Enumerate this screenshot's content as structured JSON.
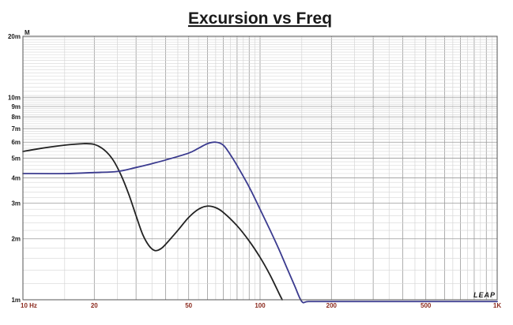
{
  "chart_data": {
    "type": "line",
    "title": "Excursion vs Freq",
    "ylabel": "M",
    "xscale": "log",
    "yscale": "log",
    "xlim": [
      10,
      1000
    ],
    "ylim": [
      0.001,
      0.02
    ],
    "grid": true,
    "x_tick_labels": [
      {
        "value": 10,
        "label": "10  Hz"
      },
      {
        "value": 20,
        "label": "20"
      },
      {
        "value": 50,
        "label": "50"
      },
      {
        "value": 100,
        "label": "100"
      },
      {
        "value": 200,
        "label": "200"
      },
      {
        "value": 500,
        "label": "500"
      },
      {
        "value": 1000,
        "label": "1K"
      }
    ],
    "y_tick_labels": [
      {
        "value": 0.02,
        "label": "20m"
      },
      {
        "value": 0.01,
        "label": "10m"
      },
      {
        "value": 0.009,
        "label": "9m"
      },
      {
        "value": 0.008,
        "label": "8m"
      },
      {
        "value": 0.007,
        "label": "7m"
      },
      {
        "value": 0.006,
        "label": "6m"
      },
      {
        "value": 0.005,
        "label": "5m"
      },
      {
        "value": 0.004,
        "label": "4m"
      },
      {
        "value": 0.003,
        "label": "3m"
      },
      {
        "value": 0.002,
        "label": "2m"
      },
      {
        "value": 0.001,
        "label": "1m"
      }
    ],
    "series": [
      {
        "color": "#222222",
        "points": [
          [
            10,
            0.0054
          ],
          [
            12,
            0.0056
          ],
          [
            15,
            0.0058
          ],
          [
            18,
            0.0059
          ],
          [
            20,
            0.00585
          ],
          [
            22,
            0.0055
          ],
          [
            24,
            0.0049
          ],
          [
            26,
            0.0041
          ],
          [
            28,
            0.0033
          ],
          [
            30,
            0.0026
          ],
          [
            32,
            0.0021
          ],
          [
            34,
            0.00185
          ],
          [
            36,
            0.00175
          ],
          [
            38,
            0.00178
          ],
          [
            40,
            0.00188
          ],
          [
            45,
            0.0022
          ],
          [
            50,
            0.00255
          ],
          [
            55,
            0.0028
          ],
          [
            60,
            0.0029
          ],
          [
            65,
            0.00285
          ],
          [
            70,
            0.0027
          ],
          [
            80,
            0.00232
          ],
          [
            90,
            0.00195
          ],
          [
            100,
            0.00162
          ],
          [
            110,
            0.00133
          ],
          [
            120,
            0.00108
          ],
          [
            124,
            0.001
          ]
        ]
      },
      {
        "color": "#3b3b8f",
        "points": [
          [
            10,
            0.0042
          ],
          [
            15,
            0.0042
          ],
          [
            20,
            0.00425
          ],
          [
            25,
            0.0043
          ],
          [
            30,
            0.0045
          ],
          [
            35,
            0.0047
          ],
          [
            40,
            0.0049
          ],
          [
            50,
            0.0053
          ],
          [
            55,
            0.0056
          ],
          [
            60,
            0.0059
          ],
          [
            65,
            0.006
          ],
          [
            70,
            0.0058
          ],
          [
            75,
            0.0052
          ],
          [
            80,
            0.0046
          ],
          [
            90,
            0.0036
          ],
          [
            100,
            0.0028
          ],
          [
            110,
            0.00222
          ],
          [
            120,
            0.00178
          ],
          [
            130,
            0.00143
          ],
          [
            140,
            0.00117
          ],
          [
            150,
            0.00098
          ],
          [
            160,
            0.00098
          ],
          [
            200,
            0.00098
          ],
          [
            500,
            0.00098
          ],
          [
            1000,
            0.00098
          ]
        ]
      }
    ]
  },
  "brand": "LEAP"
}
